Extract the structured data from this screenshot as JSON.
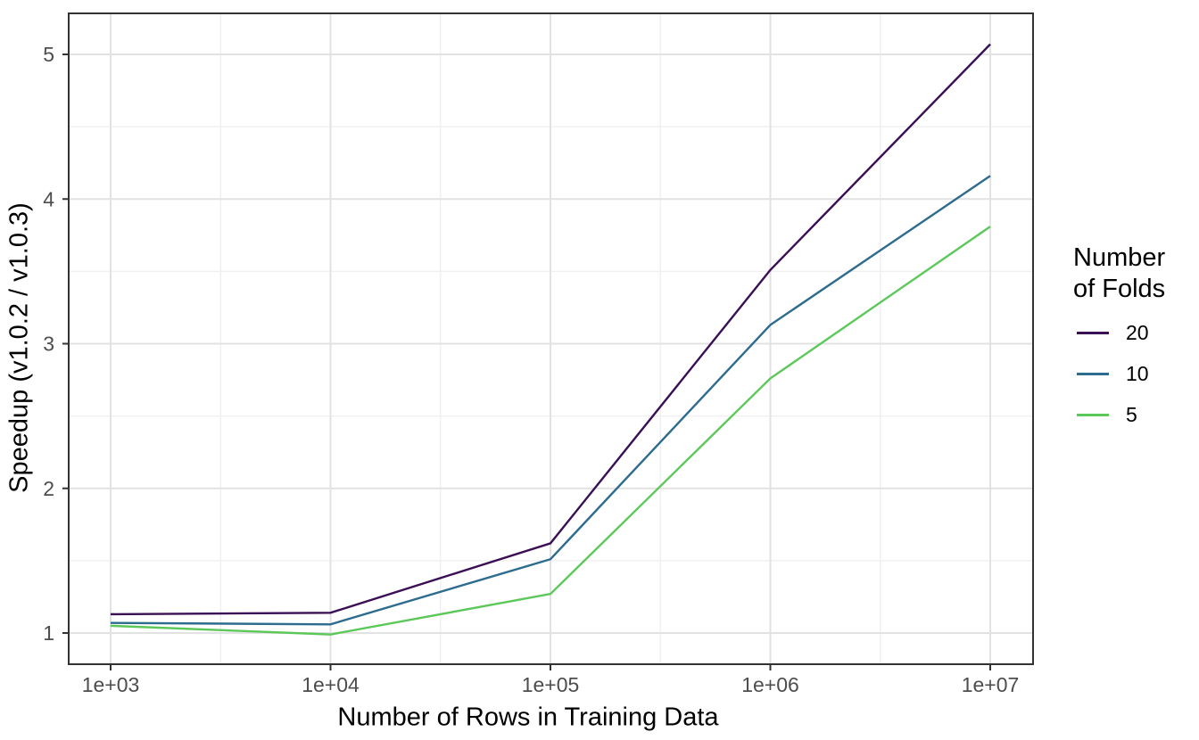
{
  "chart_data": {
    "type": "line",
    "title": "",
    "xlabel": "Number of Rows in Training Data",
    "ylabel": "Speedup (v1.0.2 / v1.0.3)",
    "x_scale": "log10",
    "x": [
      1000,
      10000,
      100000,
      1000000,
      10000000
    ],
    "x_log10": [
      3,
      4,
      5,
      6,
      7
    ],
    "x_tick_labels": [
      "1e+03",
      "1e+04",
      "1e+05",
      "1e+06",
      "1e+07"
    ],
    "x_minor_log10": [
      3.5,
      4.5,
      5.5,
      6.5
    ],
    "y_ticks": [
      1,
      2,
      3,
      4,
      5
    ],
    "y_tick_labels": [
      "1",
      "2",
      "3",
      "4",
      "5"
    ],
    "y_minor_ticks": [
      1.5,
      2.5,
      3.5,
      4.5
    ],
    "ylim": [
      0.79,
      5.27
    ],
    "xlim_log10": [
      2.81,
      7.19
    ],
    "grid": "major+minor",
    "legend": {
      "title": "Number of Folds",
      "position": "right",
      "entries": [
        {
          "label": "20",
          "color": "#3B0F54"
        },
        {
          "label": "10",
          "color": "#2D6C8E"
        },
        {
          "label": "5",
          "color": "#5DC85A"
        }
      ]
    },
    "series": [
      {
        "name": "20",
        "color": "#3B0F54",
        "values": [
          1.13,
          1.14,
          1.62,
          3.51,
          5.07
        ]
      },
      {
        "name": "10",
        "color": "#2D6C8E",
        "values": [
          1.07,
          1.06,
          1.51,
          3.13,
          4.16
        ]
      },
      {
        "name": "5",
        "color": "#5DC85A",
        "values": [
          1.05,
          0.99,
          1.27,
          2.76,
          3.81
        ]
      }
    ]
  },
  "colors": {
    "background": "#FFFFFF",
    "grid_major": "#E2E2E2",
    "grid_minor": "#F0F0F0",
    "panel_border": "#333333",
    "tick_mark": "#333333",
    "tick_label": "#4D4D4D",
    "axis_title": "#000000"
  }
}
